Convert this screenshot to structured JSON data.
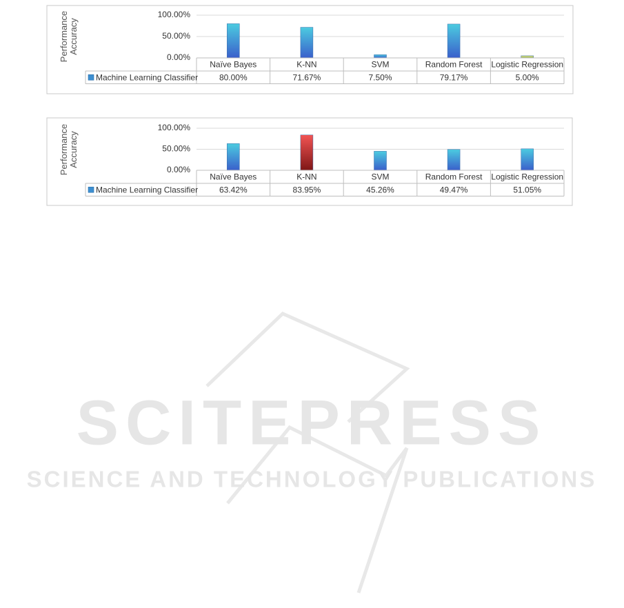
{
  "chart_data": [
    {
      "type": "bar",
      "ylabel": "Performance Accuracy",
      "categories": [
        "Naïve Bayes",
        "K-NN",
        "SVM",
        "Random Forest",
        "Logistic Regression"
      ],
      "series": [
        {
          "name": "Machine Learning Classifier",
          "color": "#3d8fd1",
          "colors": [
            [
              "#4ccbe0",
              "#3a5fcb"
            ],
            [
              "#4ccbe0",
              "#3a5fcb"
            ],
            [
              "#4ccbe0",
              "#3a5fcb"
            ],
            [
              "#4ccbe0",
              "#3a5fcb"
            ],
            [
              "#dfe58c",
              "#8fae46"
            ]
          ],
          "values": [
            80,
            71.67,
            7.5,
            79.17,
            5
          ],
          "value_labels": [
            "80.00%",
            "71.67%",
            "7.50%",
            "79.17%",
            "5.00%"
          ]
        }
      ],
      "ylim": [
        0,
        100
      ],
      "yticks": [
        {
          "value": 0,
          "label": "0.00%"
        },
        {
          "value": 50,
          "label": "50.00%"
        },
        {
          "value": 100,
          "label": "100.00%"
        }
      ],
      "grid": true
    },
    {
      "type": "bar",
      "ylabel": "Performance Accuracy",
      "categories": [
        "Naïve Bayes",
        "K-NN",
        "SVM",
        "Random Forest",
        "Logistic Regression"
      ],
      "series": [
        {
          "name": "Machine Learning Classifier",
          "color": "#3d8fd1",
          "colors": [
            [
              "#4ccbe0",
              "#3a5fcb"
            ],
            [
              "#f25454",
              "#7e1616"
            ],
            [
              "#4ccbe0",
              "#3a5fcb"
            ],
            [
              "#4ccbe0",
              "#3a5fcb"
            ],
            [
              "#4ccbe0",
              "#3a5fcb"
            ]
          ],
          "values": [
            63.42,
            83.95,
            45.26,
            49.47,
            51.05
          ],
          "value_labels": [
            "63.42%",
            "83.95%",
            "45.26%",
            "49.47%",
            "51.05%"
          ]
        }
      ],
      "ylim": [
        0,
        100
      ],
      "yticks": [
        {
          "value": 0,
          "label": "0.00%"
        },
        {
          "value": 50,
          "label": "50.00%"
        },
        {
          "value": 100,
          "label": "100.00%"
        }
      ],
      "grid": true
    }
  ],
  "watermark": {
    "title": "SCITEPRESS",
    "subtitle": "SCIENCE AND TECHNOLOGY PUBLICATIONS"
  }
}
